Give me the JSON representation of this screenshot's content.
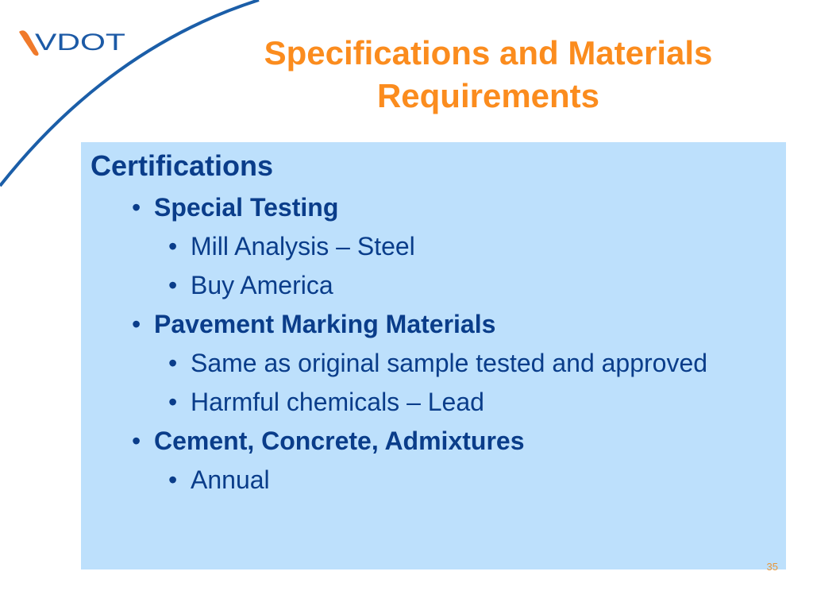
{
  "logo": {
    "text": "VDOT",
    "colors": {
      "swoosh": "#f07a2b",
      "letters": "#1c5aa6"
    }
  },
  "title": {
    "line1": "Specifications and Materials",
    "line2": "Requirements"
  },
  "content": {
    "heading": "Certifications",
    "items": [
      {
        "label": "Special Testing",
        "children": [
          "Mill Analysis – Steel",
          "Buy America"
        ]
      },
      {
        "label": "Pavement Marking Materials",
        "children": [
          "Same as original sample tested and approved",
          "Harmful chemicals – Lead"
        ]
      },
      {
        "label": "Cement, Concrete, Admixtures",
        "children": [
          "Annual"
        ]
      }
    ],
    "bullet": "•"
  },
  "page_number": "35",
  "colors": {
    "title": "#fb8c1e",
    "text": "#0a3d8a",
    "box": "#bde0fc",
    "curve": "#1b5ea8"
  }
}
